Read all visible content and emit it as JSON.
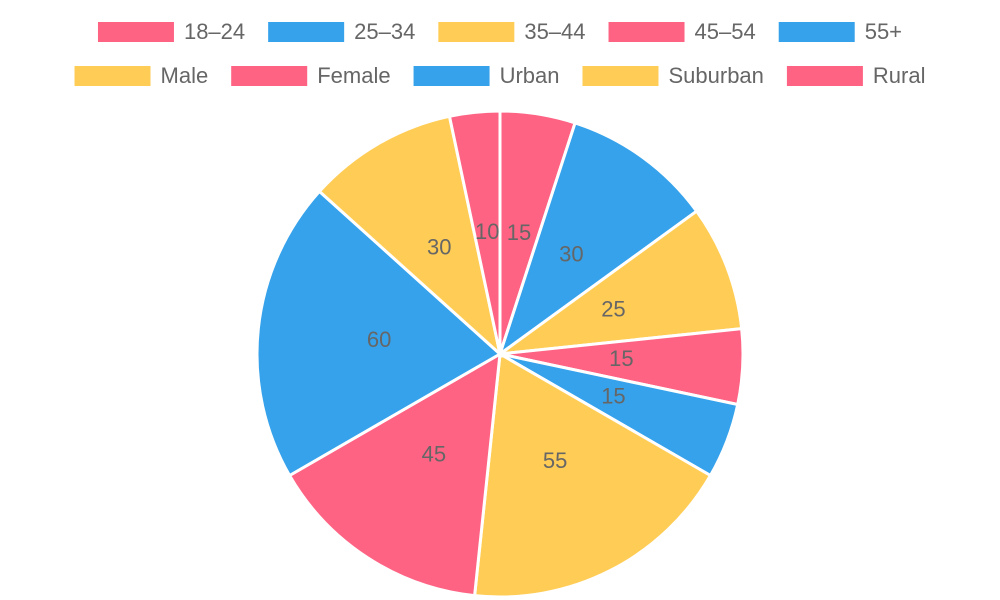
{
  "chart_data": {
    "type": "pie",
    "categories": [
      "18–24",
      "25–34",
      "35–44",
      "45–54",
      "55+",
      "Male",
      "Female",
      "Urban",
      "Suburban",
      "Rural"
    ],
    "values": [
      15,
      30,
      25,
      15,
      15,
      55,
      45,
      60,
      30,
      10
    ],
    "colors": [
      "#ff6384",
      "#36a2eb",
      "#ffcd56",
      "#ff6384",
      "#36a2eb",
      "#ffcd56",
      "#ff6384",
      "#36a2eb",
      "#ffcd56",
      "#ff6384"
    ],
    "legend": "top"
  }
}
